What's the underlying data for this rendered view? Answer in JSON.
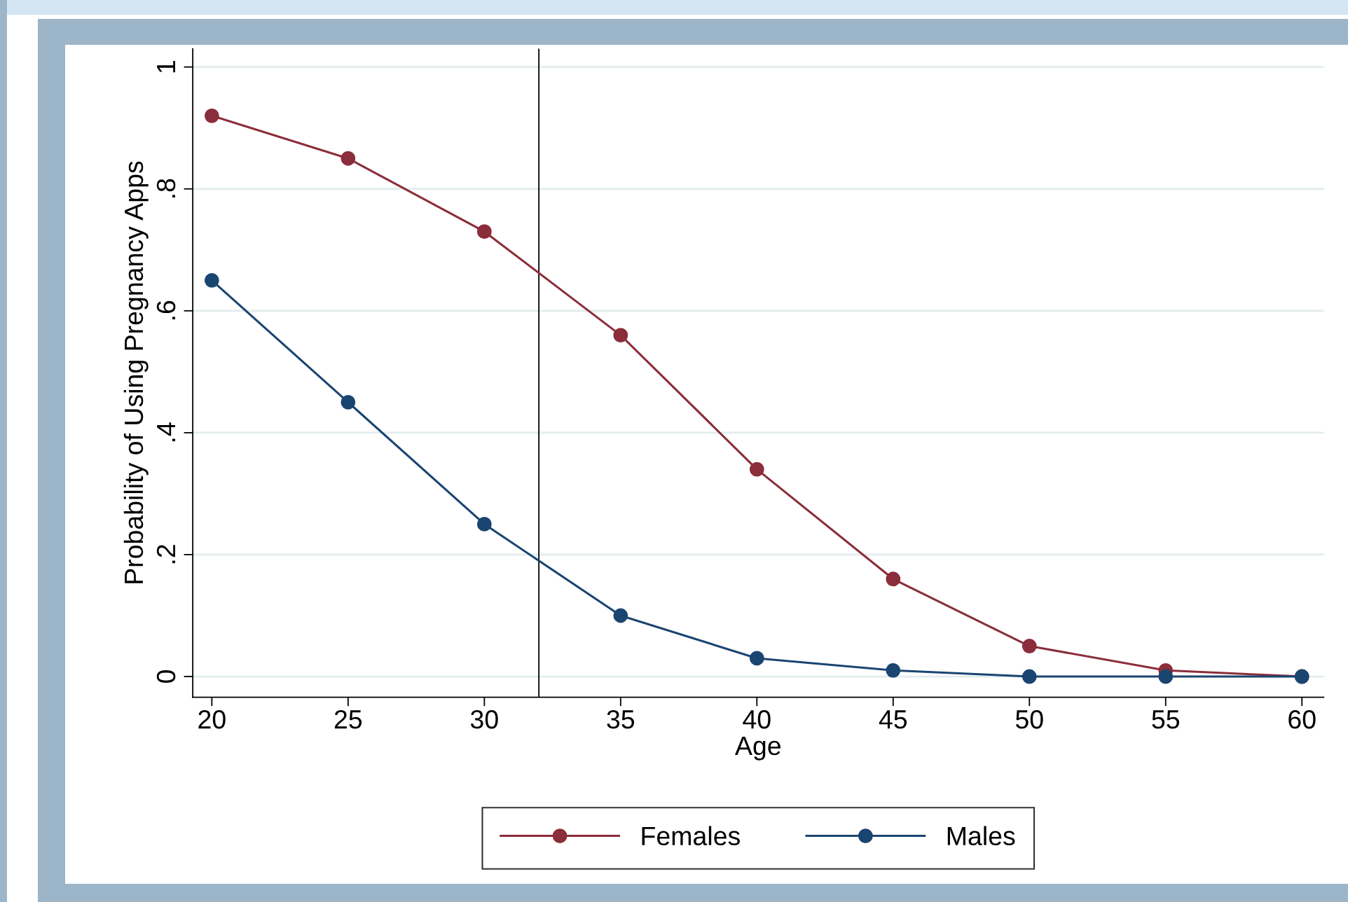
{
  "chart_data": {
    "type": "line",
    "xlabel": "Age",
    "ylabel": "Probability of Using Pregnancy Apps",
    "x": [
      20,
      25,
      30,
      35,
      40,
      45,
      50,
      55,
      60
    ],
    "series": [
      {
        "name": "Females",
        "color": "#8b2d3a",
        "values": [
          0.92,
          0.85,
          0.73,
          0.56,
          0.34,
          0.16,
          0.05,
          0.01,
          0.0
        ]
      },
      {
        "name": "Males",
        "color": "#1a4571",
        "values": [
          0.65,
          0.45,
          0.25,
          0.1,
          0.03,
          0.01,
          0.0,
          0.0,
          0.0
        ]
      }
    ],
    "xlim": [
      19.3,
      60.8
    ],
    "ylim": [
      -0.034,
      1.03
    ],
    "xticks": [
      20,
      25,
      30,
      35,
      40,
      45,
      50,
      55,
      60
    ],
    "yticks": [
      {
        "value": 0,
        "label": "0"
      },
      {
        "value": 0.2,
        "label": ".2"
      },
      {
        "value": 0.4,
        "label": ".4"
      },
      {
        "value": 0.6,
        "label": ".6"
      },
      {
        "value": 0.8,
        "label": ".8"
      },
      {
        "value": 1,
        "label": "1"
      }
    ],
    "ref_lines": [
      {
        "axis": "x",
        "value": 32,
        "color": "#000000"
      }
    ],
    "grid": "y",
    "legend": "bottom",
    "marker": "circle",
    "line_style": "solid"
  }
}
